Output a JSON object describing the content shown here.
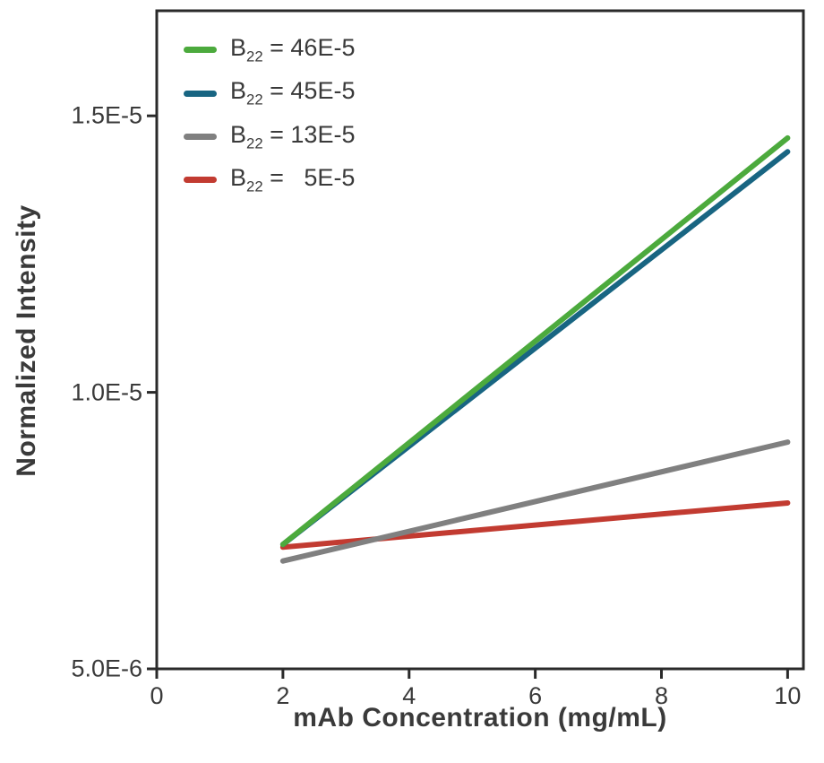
{
  "chart_data": {
    "type": "line",
    "title": "",
    "xlabel": "mAb Concentration (mg/mL)",
    "ylabel": "Normalized Intensity",
    "xlim": [
      0,
      10.25
    ],
    "ylim": [
      5e-06,
      1.69e-05
    ],
    "grid": false,
    "legend_position": "top-left",
    "x_ticks": [
      {
        "value": 0,
        "label": "0"
      },
      {
        "value": 2,
        "label": "2"
      },
      {
        "value": 4,
        "label": "4"
      },
      {
        "value": 6,
        "label": "6"
      },
      {
        "value": 8,
        "label": "8"
      },
      {
        "value": 10,
        "label": "10"
      }
    ],
    "y_ticks": [
      {
        "value": 5e-06,
        "label": "5.0E-6"
      },
      {
        "value": 1e-05,
        "label": "1.0E-5"
      },
      {
        "value": 1.5e-05,
        "label": "1.5E-5"
      }
    ],
    "frame_color": "#2a2a2a",
    "series": [
      {
        "name": "B22 = 46E-5",
        "label": {
          "base": "B",
          "sub": "22",
          "rest": " = 46E-5"
        },
        "color": "#4caa3d",
        "x": [
          2,
          10
        ],
        "y": [
          7.25e-06,
          1.46e-05
        ]
      },
      {
        "name": "B22 = 45E-5",
        "label": {
          "base": "B",
          "sub": "22",
          "rest": " = 45E-5"
        },
        "color": "#186582",
        "x": [
          2,
          10
        ],
        "y": [
          7.25e-06,
          1.435e-05
        ]
      },
      {
        "name": "B22 = 13E-5",
        "label": {
          "base": "B",
          "sub": "22",
          "rest": " = 13E-5"
        },
        "color": "#808080",
        "x": [
          2,
          10
        ],
        "y": [
          6.95e-06,
          9.1e-06
        ]
      },
      {
        "name": "B22 = 5E-5",
        "label": {
          "base": "B",
          "sub": "22",
          "rest": " =   5E-5"
        },
        "color": "#c23b31",
        "x": [
          2,
          10
        ],
        "y": [
          7.2e-06,
          8e-06
        ]
      }
    ]
  }
}
